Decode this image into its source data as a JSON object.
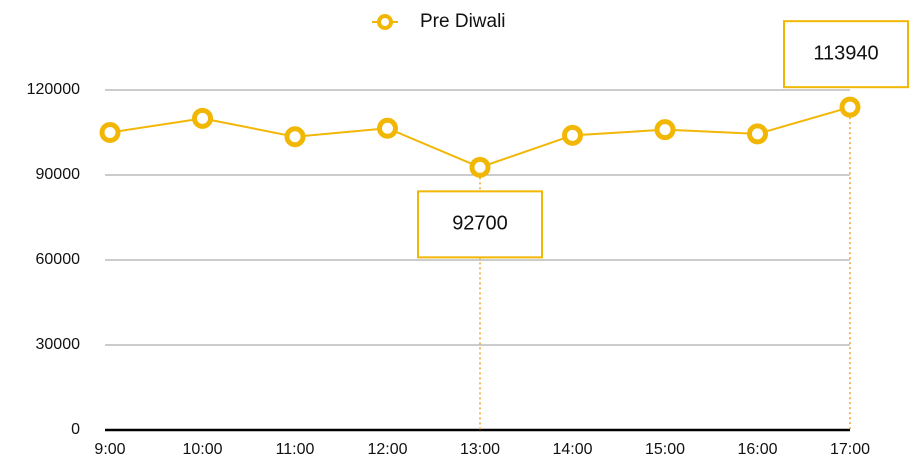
{
  "chart_data": {
    "type": "line",
    "categories": [
      "9:00",
      "10:00",
      "11:00",
      "12:00",
      "13:00",
      "14:00",
      "15:00",
      "16:00",
      "17:00"
    ],
    "series": [
      {
        "name": "Pre Diwali",
        "color": "#f2b705",
        "values": [
          105000,
          110000,
          103500,
          106500,
          92700,
          104000,
          106000,
          104500,
          113940
        ]
      }
    ],
    "ylim": [
      0,
      120000
    ],
    "yticks": [
      0,
      30000,
      60000,
      90000,
      120000
    ],
    "grid": true,
    "annotated_points": [
      4,
      8
    ],
    "legend": "top"
  }
}
